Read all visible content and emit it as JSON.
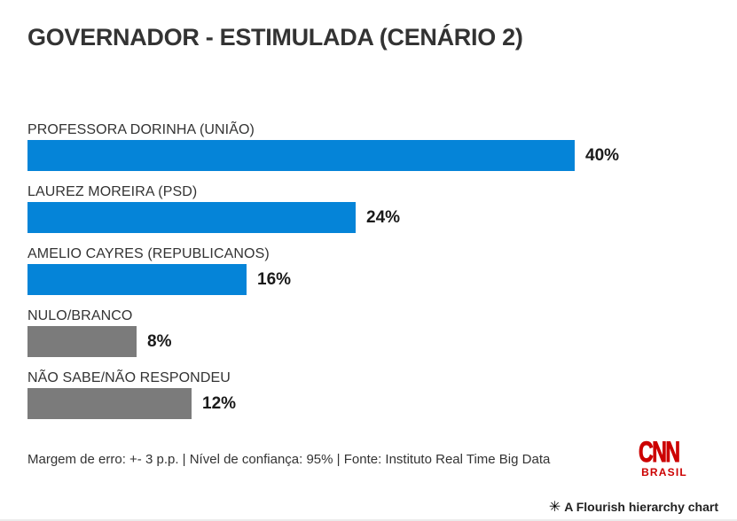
{
  "chart_data": {
    "type": "bar",
    "orientation": "horizontal",
    "title": "GOVERNADOR - ESTIMULADA (CENÁRIO 2)",
    "categories": [
      "PROFESSORA DORINHA (UNIÃO)",
      "LAUREZ MOREIRA (PSD)",
      "AMELIO CAYRES (REPUBLICANOS)",
      "NULO/BRANCO",
      "NÃO SABE/NÃO RESPONDEU"
    ],
    "values": [
      40,
      24,
      16,
      8,
      12
    ],
    "value_labels": [
      "40%",
      "24%",
      "16%",
      "8%",
      "12%"
    ],
    "bar_colors": [
      "#0584d8",
      "#0584d8",
      "#0584d8",
      "#7b7b7b",
      "#7b7b7b"
    ],
    "xlim": [
      0,
      40
    ],
    "grid": false,
    "legend": "none",
    "colors": {
      "candidate_blue": "#0584d8",
      "neutral_gray": "#7b7b7b"
    }
  },
  "footer": {
    "note": "Margem de erro: +- 3 p.p. | Nível de confiança: 95% | Fonte: Instituto Real Time Big Data"
  },
  "branding": {
    "logo_line1": "CNN",
    "logo_line2": "BRASIL",
    "logo_color": "#cc0000"
  },
  "attribution": {
    "icon": "✳",
    "text": "A Flourish hierarchy chart"
  }
}
